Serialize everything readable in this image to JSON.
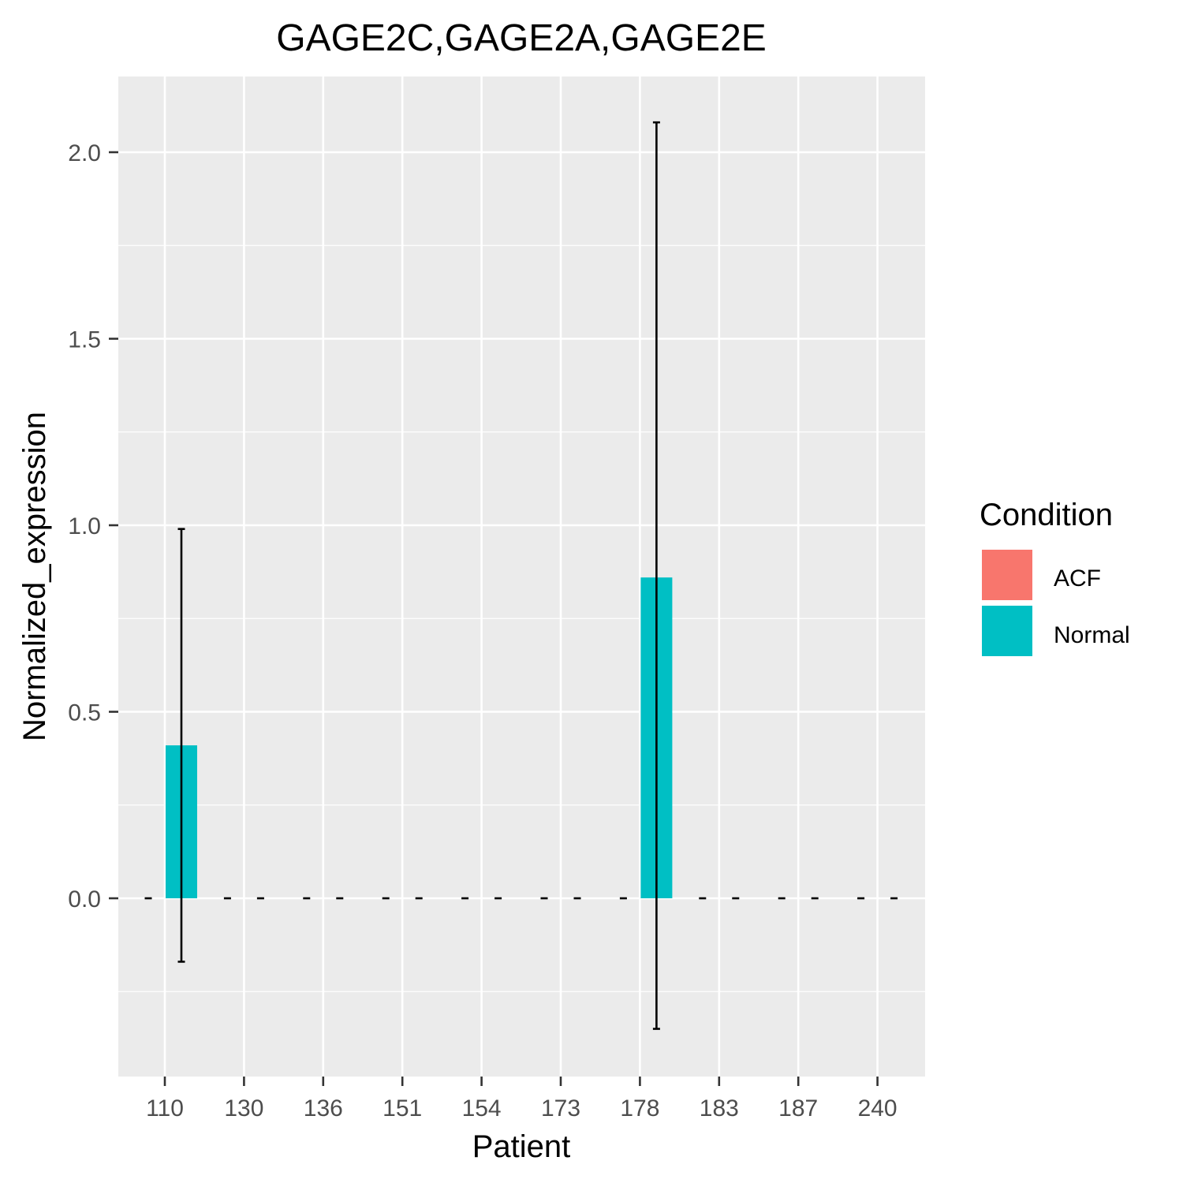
{
  "chart_data": {
    "type": "bar",
    "title": "GAGE2C,GAGE2A,GAGE2E",
    "xlabel": "Patient",
    "ylabel": "Normalized_expression",
    "categories": [
      "110",
      "130",
      "136",
      "151",
      "154",
      "173",
      "178",
      "183",
      "187",
      "240"
    ],
    "y_ticks": [
      0.0,
      0.5,
      1.0,
      1.5,
      2.0
    ],
    "y_tick_labels": [
      "0.0",
      "0.5",
      "1.0",
      "1.5",
      "2.0"
    ],
    "ylim": [
      -0.46,
      2.21
    ],
    "grid": true,
    "legend": {
      "title": "Condition",
      "position": "right"
    },
    "series": [
      {
        "name": "ACF",
        "color": "#F8766D",
        "values": [
          0,
          0,
          0,
          0,
          0,
          0,
          0,
          0,
          0,
          0
        ],
        "error_low": [
          0,
          0,
          0,
          0,
          0,
          0,
          0,
          0,
          0,
          0
        ],
        "error_high": [
          0,
          0,
          0,
          0,
          0,
          0,
          0,
          0,
          0,
          0
        ]
      },
      {
        "name": "Normal",
        "color": "#00BFC4",
        "values": [
          0.41,
          0,
          0,
          0,
          0,
          0,
          0.86,
          0,
          0,
          0
        ],
        "error_low": [
          -0.17,
          0,
          0,
          0,
          0,
          0,
          -0.35,
          0,
          0,
          0
        ],
        "error_high": [
          0.99,
          0,
          0,
          0,
          0,
          0,
          2.08,
          0,
          0,
          0
        ]
      }
    ]
  }
}
